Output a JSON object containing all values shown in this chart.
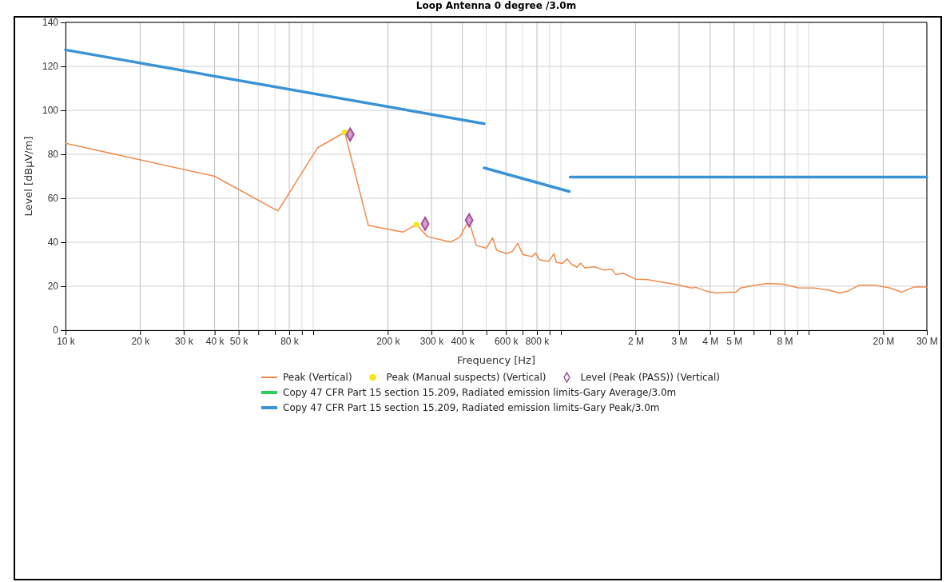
{
  "chart_data": {
    "type": "line",
    "title": "Loop Antenna 0 degree /3.0m",
    "xlabel": "Frequency [Hz]",
    "ylabel": "Level [dBµV/m]",
    "log": "x",
    "xlim": [
      10000,
      30000000
    ],
    "ylim": [
      0,
      140
    ],
    "xticks": [
      {
        "value": 10000,
        "label": "10 k"
      },
      {
        "value": 20000,
        "label": "20 k"
      },
      {
        "value": 30000,
        "label": "30 k"
      },
      {
        "value": 40000,
        "label": "40 k"
      },
      {
        "value": 50000,
        "label": "50 k"
      },
      {
        "value": 60000,
        "label": null
      },
      {
        "value": 70000,
        "label": null
      },
      {
        "value": 80000,
        "label": "80 k"
      },
      {
        "value": 90000,
        "label": null
      },
      {
        "value": 100000,
        "label": null
      },
      {
        "value": 200000,
        "label": "200 k"
      },
      {
        "value": 300000,
        "label": "300 k"
      },
      {
        "value": 400000,
        "label": "400 k"
      },
      {
        "value": 500000,
        "label": null
      },
      {
        "value": 600000,
        "label": "600 k"
      },
      {
        "value": 700000,
        "label": null
      },
      {
        "value": 800000,
        "label": "800 k"
      },
      {
        "value": 900000,
        "label": null
      },
      {
        "value": 1000000,
        "label": null
      },
      {
        "value": 2000000,
        "label": "2 M"
      },
      {
        "value": 3000000,
        "label": "3 M"
      },
      {
        "value": 4000000,
        "label": "4 M"
      },
      {
        "value": 5000000,
        "label": "5 M"
      },
      {
        "value": 6000000,
        "label": null
      },
      {
        "value": 7000000,
        "label": null
      },
      {
        "value": 8000000,
        "label": "8 M"
      },
      {
        "value": 9000000,
        "label": null
      },
      {
        "value": 10000000,
        "label": null
      },
      {
        "value": 20000000,
        "label": "20 M"
      },
      {
        "value": 30000000,
        "label": "30 M"
      }
    ],
    "yticks": [
      0,
      20,
      40,
      60,
      80,
      100,
      120,
      140
    ],
    "grid": true,
    "legend": "bottom",
    "series": [
      {
        "name": "Peak (Vertical)",
        "color": "#f08a4b",
        "marker": "none",
        "x": [
          10000,
          40000,
          72000,
          104000,
          134000,
          167000,
          230000,
          261000,
          290000,
          359000,
          390000,
          425000,
          455000,
          500000,
          530000,
          550000,
          601000,
          636000,
          669000,
          702000,
          764000,
          790000,
          820000,
          893000,
          937000,
          959000,
          1015000,
          1059000,
          1105000,
          1159000,
          1202000,
          1247000,
          1365000,
          1487000,
          1604000,
          1664000,
          1786000,
          2000000,
          2240000,
          2540000,
          2930000,
          3370000,
          3500000,
          3890000,
          4240000,
          4750000,
          5090000,
          5310000,
          5940000,
          6840000,
          7880000,
          9080000,
          10500000,
          12100000,
          13300000,
          14300000,
          16000000,
          18400000,
          21200000,
          23800000,
          26600000,
          30000000
        ],
        "values": [
          85,
          70,
          54.2,
          82.9,
          90,
          47.6,
          44.6,
          48,
          42.5,
          40.1,
          42.2,
          50,
          38.6,
          37.3,
          42,
          36.4,
          34.8,
          35.8,
          39.5,
          34.4,
          33.5,
          35.1,
          32,
          31.3,
          34.8,
          30.8,
          30.4,
          32.4,
          30,
          28.6,
          30.5,
          28.4,
          28.8,
          27.4,
          27.7,
          25.3,
          25.9,
          23.2,
          23,
          21.9,
          20.7,
          19.2,
          19.5,
          17.6,
          16.9,
          17.3,
          17.3,
          19.2,
          20.3,
          21.3,
          20.9,
          19.3,
          19.2,
          18.2,
          16.9,
          17.6,
          20.5,
          20.5,
          19.3,
          17.3,
          19.6,
          19.6
        ]
      },
      {
        "name": "Peak (Manual suspects) (Vertical)",
        "type": "scatter",
        "color": "#f5e61a",
        "marker": "circle",
        "x": [
          134000,
          261000
        ],
        "values": [
          90,
          48
        ]
      },
      {
        "name": "Level (Peak (PASS)) (Vertical)",
        "type": "scatter",
        "color": "#a0509a",
        "marker": "diamond",
        "x": [
          141000,
          283000,
          426000
        ],
        "values": [
          89,
          48.4,
          50
        ]
      },
      {
        "name": "Copy 47 CFR Part 15 section 15.209, Radiated emission limits-Gary Average/3.0m",
        "color": "#2ecc5a",
        "marker": "none"
      },
      {
        "name": "Copy 47 CFR Part 15 section 15.209, Radiated emission limits-Gary Peak/3.0m",
        "color": "#3a93d6",
        "marker": "none",
        "x": [
          10000,
          490000,
          null,
          490000,
          1080000,
          null,
          1090000,
          30000000
        ],
        "values": [
          127.5,
          93.9,
          null,
          73.8,
          63.1,
          null,
          69.6,
          69.6
        ]
      }
    ]
  }
}
